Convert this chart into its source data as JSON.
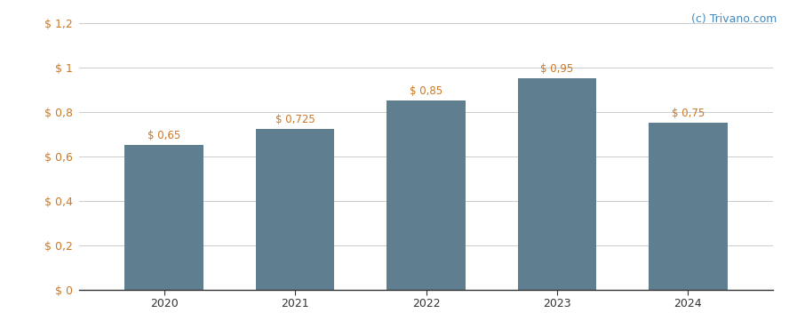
{
  "categories": [
    "2020",
    "2021",
    "2022",
    "2023",
    "2024"
  ],
  "values": [
    0.65,
    0.725,
    0.85,
    0.95,
    0.75
  ],
  "bar_labels": [
    "$ 0,65",
    "$ 0,725",
    "$ 0,85",
    "$ 0,95",
    "$ 0,75"
  ],
  "bar_color": "#5f7f90",
  "ylim": [
    0,
    1.2
  ],
  "yticks": [
    0,
    0.2,
    0.4,
    0.6,
    0.8,
    1.0,
    1.2
  ],
  "ytick_labels": [
    "$ 0",
    "$ 0,2",
    "$ 0,4",
    "$ 0,6",
    "$ 0,8",
    "$ 1",
    "$ 1,2"
  ],
  "background_color": "#ffffff",
  "grid_color": "#cccccc",
  "watermark": "(c) Trivano.com",
  "bar_width": 0.6,
  "label_fontsize": 8.5,
  "tick_fontsize": 9,
  "ytick_color": "#cc7722",
  "xtick_color": "#333333",
  "label_color": "#cc7722",
  "watermark_color": "#4488bb"
}
